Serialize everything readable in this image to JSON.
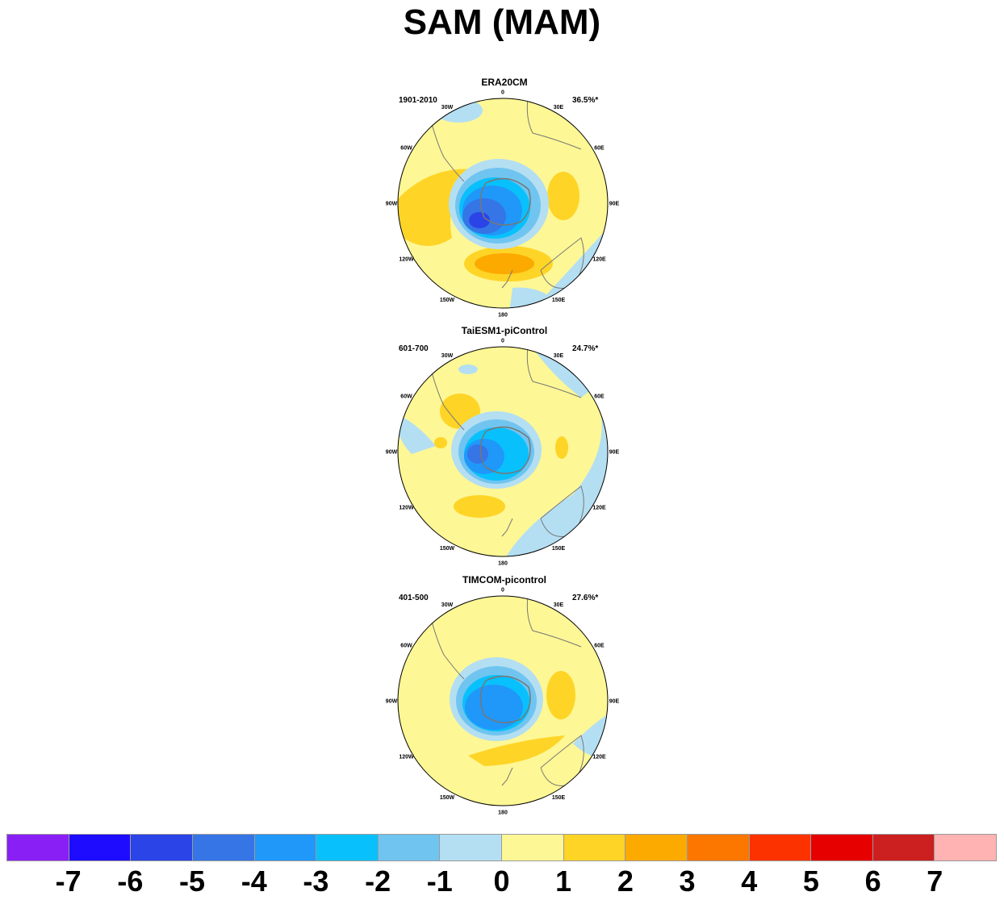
{
  "figure": {
    "title": "SAM (MAM)"
  },
  "panels": [
    {
      "title": "ERA20CM",
      "period": "1901-2010",
      "variance": "36.5%*"
    },
    {
      "title": "TaiESM1-piControl",
      "period": "601-700",
      "variance": "24.7%*"
    },
    {
      "title": "TIMCOM-picontrol",
      "period": "401-500",
      "variance": "27.6%*"
    }
  ],
  "longitude_labels": [
    "0",
    "30E",
    "60E",
    "90E",
    "120E",
    "150E",
    "180",
    "150W",
    "120W",
    "90W",
    "60W",
    "30W"
  ],
  "colorbar": {
    "colors": [
      "#8a1ff5",
      "#1e0cff",
      "#2a44e8",
      "#3575e6",
      "#1f98fa",
      "#08c1fc",
      "#70c4f0",
      "#b4dff2",
      "#fef795",
      "#fed426",
      "#fca900",
      "#fc7700",
      "#fc3300",
      "#e60000",
      "#cc1f1f",
      "#ffb3b3"
    ],
    "labels": [
      "-7",
      "-6",
      "-5",
      "-4",
      "-3",
      "-2",
      "-1",
      "0",
      "1",
      "2",
      "3",
      "4",
      "5",
      "6",
      "7"
    ]
  }
}
